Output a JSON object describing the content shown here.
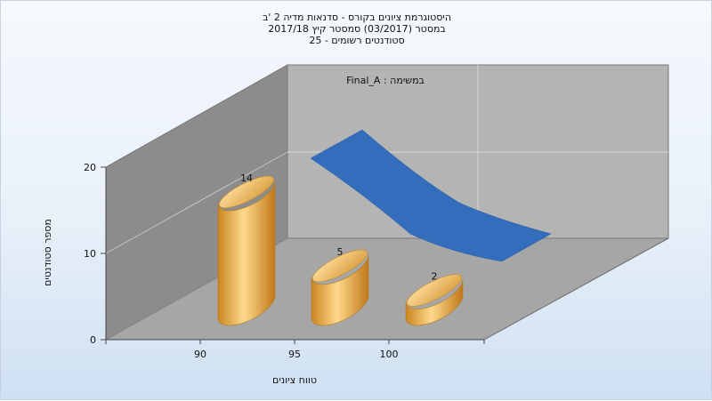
{
  "title_lines": [
    "היסטוגרמת ציונים בקורס - סדנאות מדיה 2 'ב",
    "במסטר (03/2017) סמסטר קיץ 2017/18",
    "סטודנטים רשומים - 25"
  ],
  "chart_data": {
    "type": "bar",
    "categories": [
      "90",
      "95",
      "100"
    ],
    "values": [
      14,
      5,
      2
    ],
    "ylabel": "מספר סטודנטים",
    "xlabel": "טווח ציונים",
    "ylim": [
      0,
      20
    ],
    "yticks": [
      "0",
      "10",
      "20"
    ],
    "grid": true,
    "legend_text": "במשימה : Final_A",
    "colors": {
      "bar": "#e3a13a",
      "ribbon": "#336dbb",
      "back_wall": "#b4b4b4",
      "side_wall": "#8c8c8c",
      "floor": "#a6a6a6"
    }
  }
}
